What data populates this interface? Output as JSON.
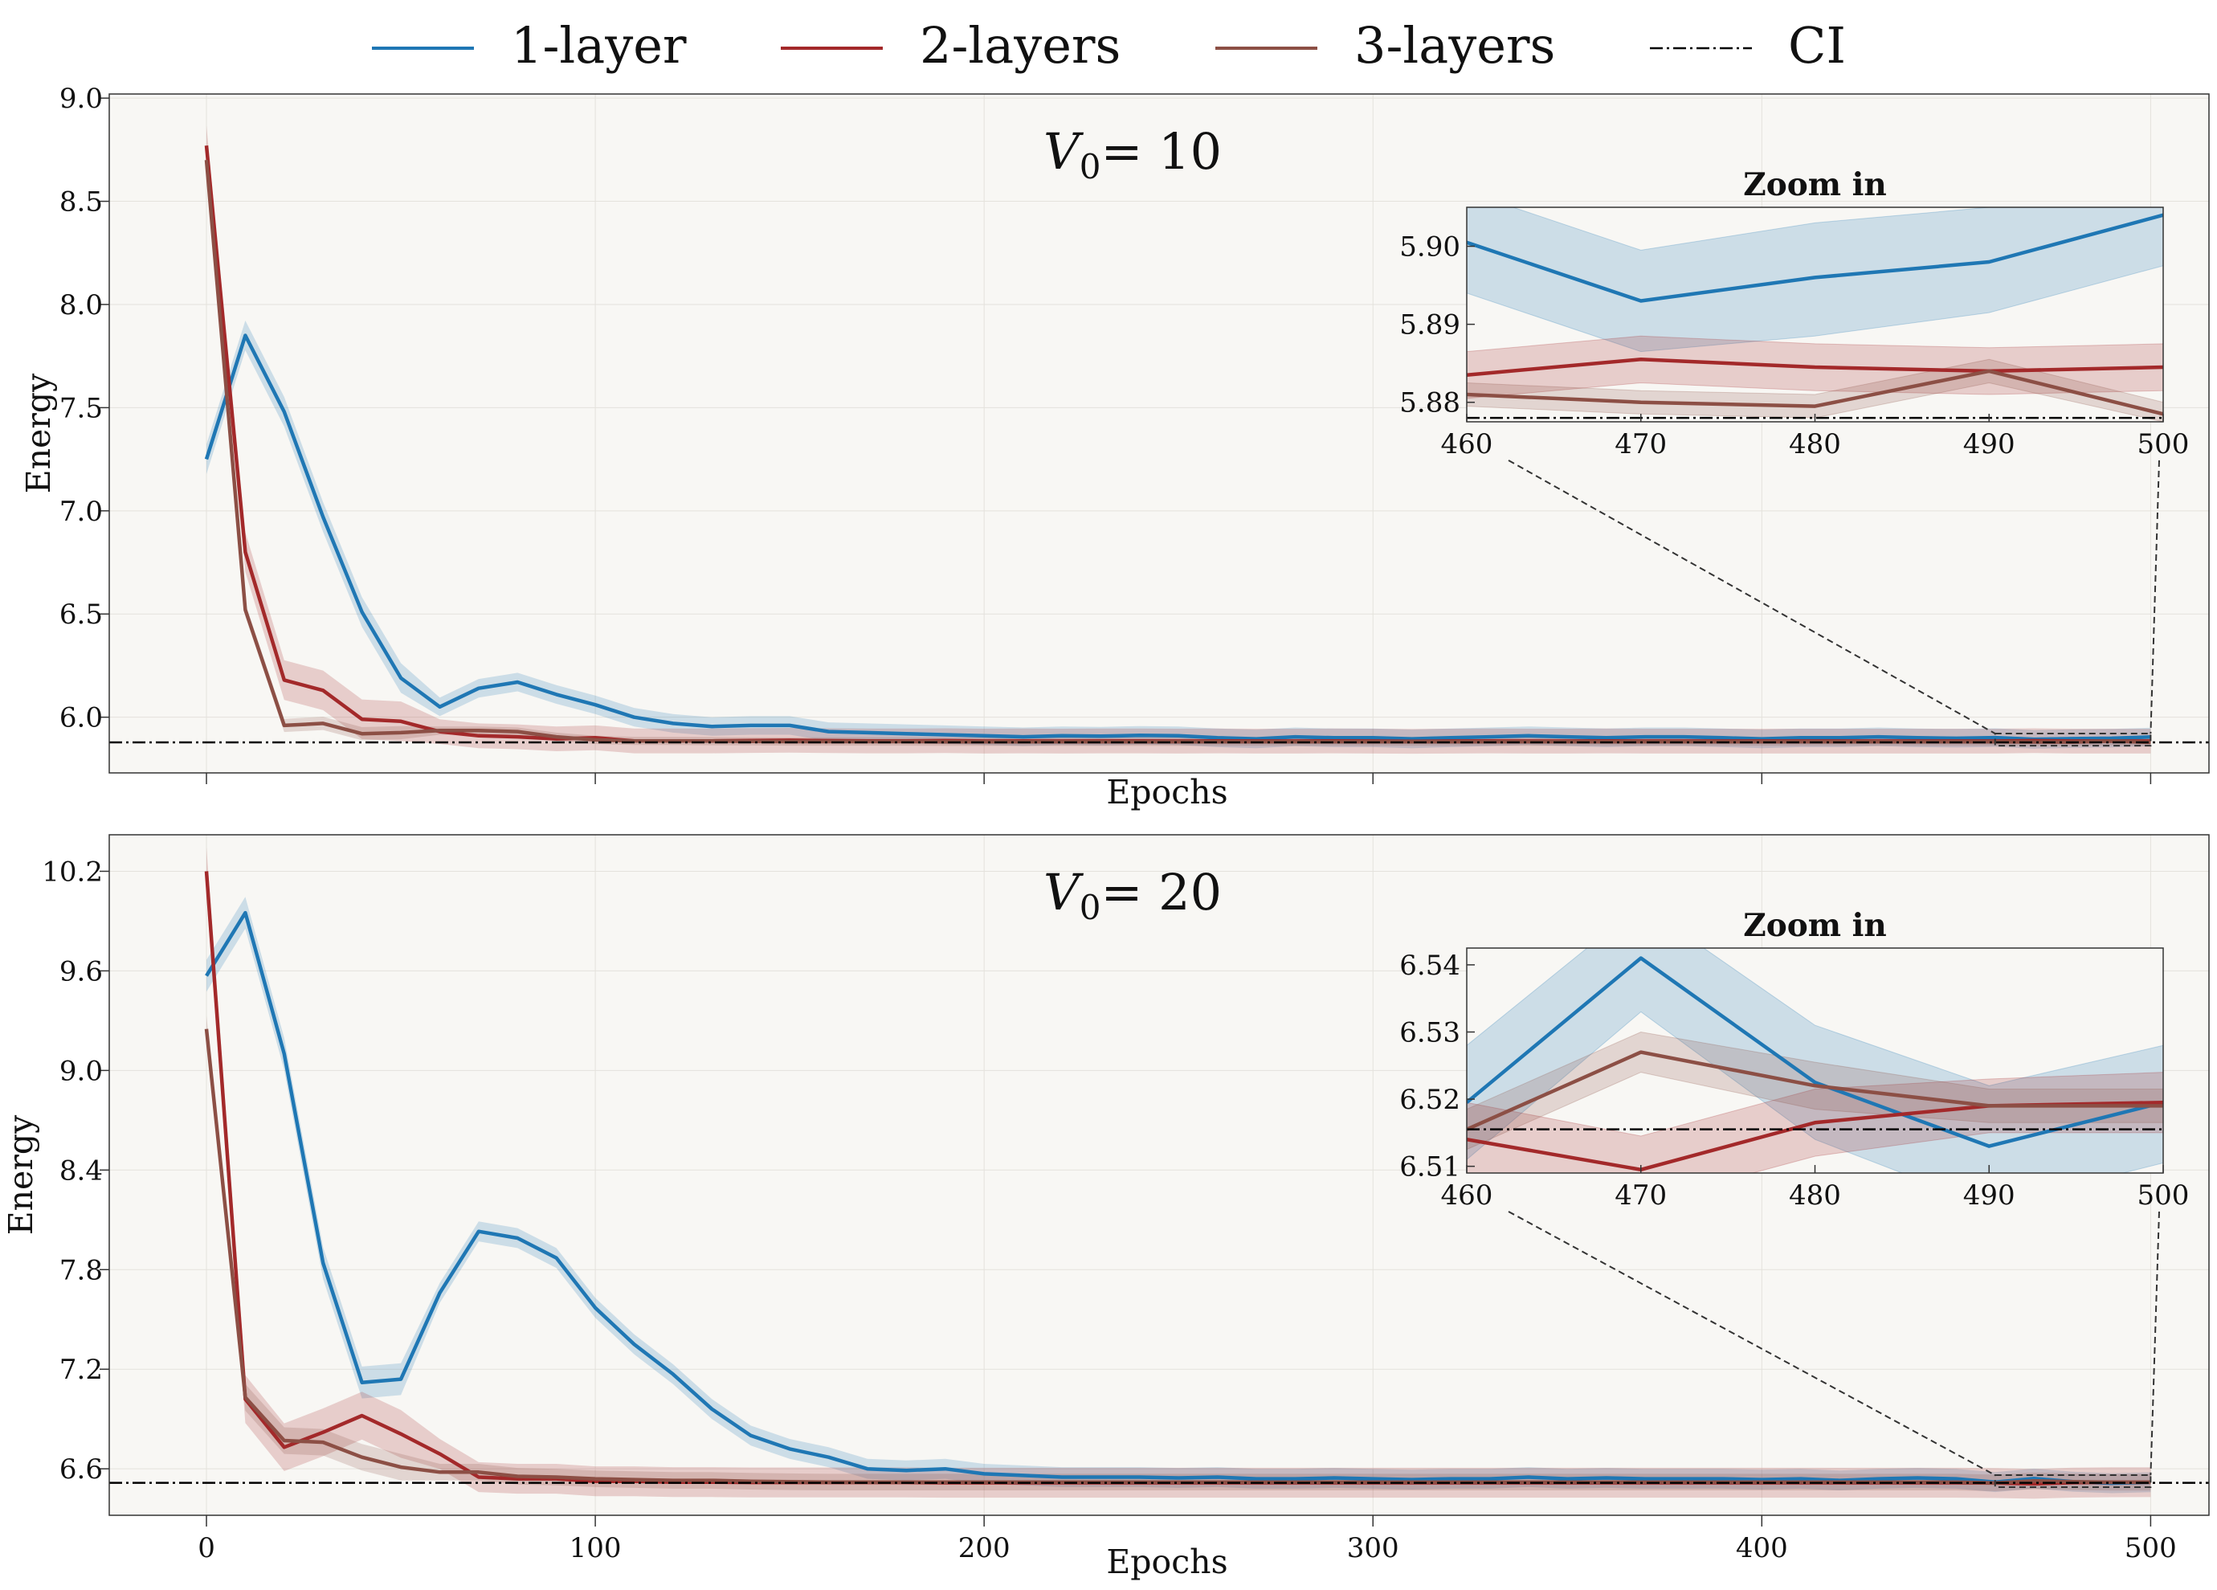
{
  "legend": [
    {
      "label": "1-layer",
      "color": "#1f77b4",
      "dash": "solid"
    },
    {
      "label": "2-layers",
      "color": "#a3292a",
      "dash": "solid"
    },
    {
      "label": "3-layers",
      "color": "#8c4f45",
      "dash": "solid"
    },
    {
      "label": "CI",
      "color": "#000000",
      "dash": "dashdot"
    }
  ],
  "chart_data": [
    {
      "type": "line",
      "annotation_base": "V",
      "annotation_sub": "0",
      "annotation_rest": "= 10",
      "xlabel": "Epochs",
      "ylabel": "Energy",
      "xlim": [
        -25,
        515
      ],
      "ylim": [
        5.73,
        9.02
      ],
      "xticks": [
        0,
        100,
        200,
        300,
        400,
        500
      ],
      "xtick_labels_shown": false,
      "yticks": [
        6.0,
        6.5,
        7.0,
        7.5,
        8.0,
        8.5,
        9.0
      ],
      "ytick_labels": [
        "6.0",
        "6.5",
        "7.0",
        "7.5",
        "8.0",
        "8.5",
        "9.0"
      ],
      "background": "#f8f7f4",
      "grid": true,
      "ci_value": 5.878,
      "x": [
        0,
        10,
        20,
        30,
        40,
        50,
        60,
        70,
        80,
        90,
        100,
        110,
        120,
        130,
        140,
        150,
        160,
        170,
        180,
        190,
        200,
        210,
        220,
        230,
        240,
        250,
        260,
        270,
        280,
        290,
        300,
        310,
        320,
        330,
        340,
        350,
        360,
        370,
        380,
        390,
        400,
        410,
        420,
        430,
        440,
        450,
        460,
        470,
        480,
        490,
        500
      ],
      "series": [
        {
          "name": "1-layer",
          "color": "#1f77b4",
          "band": 0.045,
          "values": [
            7.25,
            7.85,
            7.48,
            6.97,
            6.51,
            6.19,
            6.05,
            6.14,
            6.17,
            6.11,
            6.06,
            6.0,
            5.97,
            5.955,
            5.96,
            5.96,
            5.93,
            5.925,
            5.92,
            5.915,
            5.91,
            5.905,
            5.91,
            5.908,
            5.912,
            5.91,
            5.9,
            5.895,
            5.905,
            5.9,
            5.9,
            5.895,
            5.9,
            5.905,
            5.91,
            5.905,
            5.9,
            5.905,
            5.905,
            5.9,
            5.895,
            5.9,
            5.9,
            5.905,
            5.9,
            5.898,
            5.901,
            5.893,
            5.896,
            5.898,
            5.904
          ]
        },
        {
          "name": "2-layers",
          "color": "#a3292a",
          "band": 0.06,
          "values": [
            8.77,
            6.8,
            6.18,
            6.13,
            5.99,
            5.98,
            5.93,
            5.91,
            5.905,
            5.895,
            5.9,
            5.885,
            5.885,
            5.885,
            5.887,
            5.888,
            5.886,
            5.885,
            5.885,
            5.886,
            5.884,
            5.885,
            5.884,
            5.885,
            5.885,
            5.884,
            5.885,
            5.884,
            5.884,
            5.885,
            5.884,
            5.883,
            5.884,
            5.885,
            5.884,
            5.884,
            5.885,
            5.884,
            5.884,
            5.884,
            5.884,
            5.884,
            5.884,
            5.884,
            5.884,
            5.884,
            5.884,
            5.886,
            5.884,
            5.884,
            5.884
          ]
        },
        {
          "name": "3-layers",
          "color": "#8c4f45",
          "band": 0.02,
          "values": [
            8.7,
            6.52,
            5.96,
            5.97,
            5.92,
            5.925,
            5.935,
            5.935,
            5.93,
            5.905,
            5.89,
            5.885,
            5.885,
            5.884,
            5.883,
            5.882,
            5.882,
            5.882,
            5.882,
            5.881,
            5.881,
            5.881,
            5.881,
            5.881,
            5.881,
            5.881,
            5.881,
            5.881,
            5.881,
            5.881,
            5.881,
            5.881,
            5.881,
            5.881,
            5.881,
            5.881,
            5.881,
            5.881,
            5.881,
            5.881,
            5.881,
            5.881,
            5.881,
            5.881,
            5.881,
            5.881,
            5.881,
            5.88,
            5.8795,
            5.884,
            5.8785
          ]
        }
      ],
      "inset": {
        "title": "Zoom in",
        "xlim": [
          460,
          500
        ],
        "ylim": [
          5.8775,
          5.905
        ],
        "xticks": [
          460,
          470,
          480,
          490,
          500
        ],
        "xtick_labels": [
          "460",
          "470",
          "480",
          "490",
          "500"
        ],
        "yticks": [
          5.88,
          5.89,
          5.9
        ],
        "ytick_labels": [
          "5.88",
          "5.89",
          "5.90"
        ],
        "ci_value": 5.878,
        "x": [
          460,
          470,
          480,
          490,
          500
        ],
        "series": [
          {
            "name": "1-layer",
            "values": [
              5.9005,
              5.893,
              5.896,
              5.898,
              5.904
            ],
            "lower": [
              5.894,
              5.8865,
              5.8885,
              5.8915,
              5.8975
            ],
            "upper": [
              5.907,
              5.8995,
              5.903,
              5.905,
              5.9105
            ]
          },
          {
            "name": "2-layers",
            "values": [
              5.8835,
              5.8855,
              5.8845,
              5.884,
              5.8845
            ],
            "lower": [
              5.8805,
              5.8825,
              5.8815,
              5.881,
              5.8815
            ],
            "upper": [
              5.8865,
              5.8885,
              5.8875,
              5.887,
              5.8875
            ]
          },
          {
            "name": "3-layers",
            "values": [
              5.881,
              5.88,
              5.8795,
              5.884,
              5.8785
            ],
            "lower": [
              5.8795,
              5.8785,
              5.878,
              5.8825,
              5.8775
            ],
            "upper": [
              5.8825,
              5.8815,
              5.881,
              5.8855,
              5.88
            ]
          }
        ]
      }
    },
    {
      "type": "line",
      "annotation_base": "V",
      "annotation_sub": "0",
      "annotation_rest": "= 20",
      "xlabel": "Epochs",
      "ylabel": "Energy",
      "xlim": [
        -25,
        515
      ],
      "ylim": [
        6.32,
        10.42
      ],
      "xticks": [
        0,
        100,
        200,
        300,
        400,
        500
      ],
      "xtick_labels_shown": true,
      "xtick_labels": [
        "0",
        "100",
        "200",
        "300",
        "400",
        "500"
      ],
      "yticks": [
        6.6,
        7.2,
        7.8,
        8.4,
        9.0,
        9.6,
        10.2
      ],
      "ytick_labels": [
        "6.6",
        "7.2",
        "7.8",
        "8.4",
        "9.0",
        "9.6",
        "10.2"
      ],
      "background": "#f8f7f4",
      "grid": true,
      "ci_value": 6.5155,
      "x": [
        0,
        10,
        20,
        30,
        40,
        50,
        60,
        70,
        80,
        90,
        100,
        110,
        120,
        130,
        140,
        150,
        160,
        170,
        180,
        190,
        200,
        210,
        220,
        230,
        240,
        250,
        260,
        270,
        280,
        290,
        300,
        310,
        320,
        330,
        340,
        350,
        360,
        370,
        380,
        390,
        400,
        410,
        420,
        430,
        440,
        450,
        460,
        470,
        480,
        490,
        500
      ],
      "series": [
        {
          "name": "1-layer",
          "color": "#1f77b4",
          "band": 0.06,
          "values": [
            9.57,
            9.95,
            9.1,
            7.84,
            7.12,
            7.14,
            7.66,
            8.03,
            7.99,
            7.87,
            7.57,
            7.35,
            7.17,
            6.96,
            6.8,
            6.72,
            6.67,
            6.6,
            6.59,
            6.6,
            6.57,
            6.56,
            6.55,
            6.55,
            6.55,
            6.545,
            6.55,
            6.54,
            6.54,
            6.545,
            6.54,
            6.535,
            6.54,
            6.54,
            6.55,
            6.54,
            6.545,
            6.54,
            6.54,
            6.54,
            6.535,
            6.54,
            6.53,
            6.54,
            6.545,
            6.54,
            6.52,
            6.541,
            6.5225,
            6.513,
            6.519
          ]
        },
        {
          "name": "2-layers",
          "color": "#a3292a",
          "band": 0.09,
          "values": [
            10.2,
            7.02,
            6.73,
            6.82,
            6.92,
            6.81,
            6.69,
            6.55,
            6.54,
            6.54,
            6.525,
            6.525,
            6.52,
            6.52,
            6.518,
            6.518,
            6.518,
            6.518,
            6.518,
            6.516,
            6.516,
            6.516,
            6.516,
            6.516,
            6.516,
            6.516,
            6.516,
            6.516,
            6.516,
            6.516,
            6.516,
            6.516,
            6.516,
            6.516,
            6.516,
            6.516,
            6.516,
            6.516,
            6.516,
            6.516,
            6.516,
            6.516,
            6.516,
            6.516,
            6.516,
            6.516,
            6.514,
            6.5095,
            6.5165,
            6.519,
            6.5195
          ]
        },
        {
          "name": "3-layers",
          "color": "#8c4f45",
          "band": 0.05,
          "values": [
            9.25,
            7.03,
            6.77,
            6.76,
            6.67,
            6.61,
            6.58,
            6.58,
            6.555,
            6.55,
            6.54,
            6.535,
            6.53,
            6.53,
            6.525,
            6.522,
            6.52,
            6.52,
            6.52,
            6.52,
            6.52,
            6.52,
            6.52,
            6.52,
            6.52,
            6.52,
            6.52,
            6.52,
            6.52,
            6.52,
            6.52,
            6.52,
            6.52,
            6.52,
            6.52,
            6.52,
            6.52,
            6.52,
            6.52,
            6.52,
            6.52,
            6.52,
            6.52,
            6.52,
            6.52,
            6.52,
            6.515,
            6.527,
            6.522,
            6.519,
            6.519
          ]
        }
      ],
      "inset": {
        "title": "Zoom in",
        "xlim": [
          460,
          500
        ],
        "ylim": [
          6.509,
          6.5425
        ],
        "xticks": [
          460,
          470,
          480,
          490,
          500
        ],
        "xtick_labels": [
          "460",
          "470",
          "480",
          "490",
          "500"
        ],
        "yticks": [
          6.51,
          6.52,
          6.53,
          6.54
        ],
        "ytick_labels": [
          "6.51",
          "6.52",
          "6.53",
          "6.54"
        ],
        "ci_value": 6.5155,
        "x": [
          460,
          470,
          480,
          490,
          500
        ],
        "series": [
          {
            "name": "1-layer",
            "values": [
              6.5195,
              6.541,
              6.5225,
              6.513,
              6.5195
            ],
            "lower": [
              6.511,
              6.533,
              6.514,
              6.504,
              6.5105
            ],
            "upper": [
              6.528,
              6.549,
              6.531,
              6.522,
              6.528
            ]
          },
          {
            "name": "2-layers",
            "values": [
              6.514,
              6.5095,
              6.5165,
              6.519,
              6.5195
            ],
            "lower": [
              6.5085,
              6.5045,
              6.5115,
              6.515,
              6.515
            ],
            "upper": [
              6.5195,
              6.5145,
              6.5215,
              6.523,
              6.524
            ]
          },
          {
            "name": "3-layers",
            "values": [
              6.5155,
              6.527,
              6.522,
              6.519,
              6.519
            ],
            "lower": [
              6.5125,
              6.524,
              6.5185,
              6.5165,
              6.5165
            ],
            "upper": [
              6.5185,
              6.53,
              6.5255,
              6.5215,
              6.5215
            ]
          }
        ]
      }
    }
  ]
}
